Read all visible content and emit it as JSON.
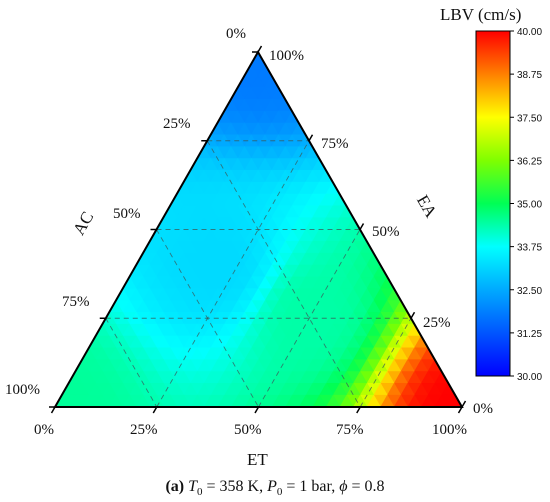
{
  "chart_data": {
    "type": "heatmap",
    "subtype": "ternary-contour",
    "colorbar": {
      "title": "LBV (cm/s)",
      "min": 30.0,
      "max": 40.0,
      "ticks": [
        "40.00",
        "38.75",
        "37.50",
        "36.25",
        "35.00",
        "33.75",
        "32.50",
        "31.25",
        "30.00"
      ],
      "colormap": [
        "#0000ff",
        "#0055ff",
        "#00aaff",
        "#00ffff",
        "#00ff55",
        "#7fff00",
        "#ffff00",
        "#ff8000",
        "#ff0000"
      ]
    },
    "axes": {
      "top_vertex_label": "0%",
      "top_vertex_right_label": "100%",
      "left_edge": {
        "title": "AC",
        "ticks": [
          "25%",
          "50%",
          "75%"
        ],
        "end_label": "100%"
      },
      "right_edge": {
        "title": "EA",
        "ticks": [
          "75%",
          "50%",
          "25%"
        ],
        "end_label": "0%"
      },
      "bottom_edge": {
        "title": "ET",
        "ticks": [
          "0%",
          "25%",
          "50%",
          "75%",
          "100%"
        ]
      }
    },
    "grid": true,
    "approx_field": {
      "description_points": [
        {
          "AC": 0,
          "EA": 100,
          "ET": 0,
          "value": 31.8
        },
        {
          "AC": 0,
          "EA": 0,
          "ET": 100,
          "value": 40.0
        },
        {
          "AC": 100,
          "EA": 0,
          "ET": 0,
          "value": 34.5
        },
        {
          "AC": 40,
          "EA": 40,
          "ET": 20,
          "value": 33.2
        },
        {
          "AC": 25,
          "EA": 25,
          "ET": 50,
          "value": 34.4
        }
      ]
    }
  },
  "caption": {
    "panel": "(a)",
    "T_sym": "T",
    "T_sub": "0",
    "T_val": " = 358 K, ",
    "P_sym": "P",
    "P_sub": "0",
    "P_val": " = 1 bar, ",
    "phi_sym": "ϕ",
    "phi_val": " = 0.8"
  }
}
